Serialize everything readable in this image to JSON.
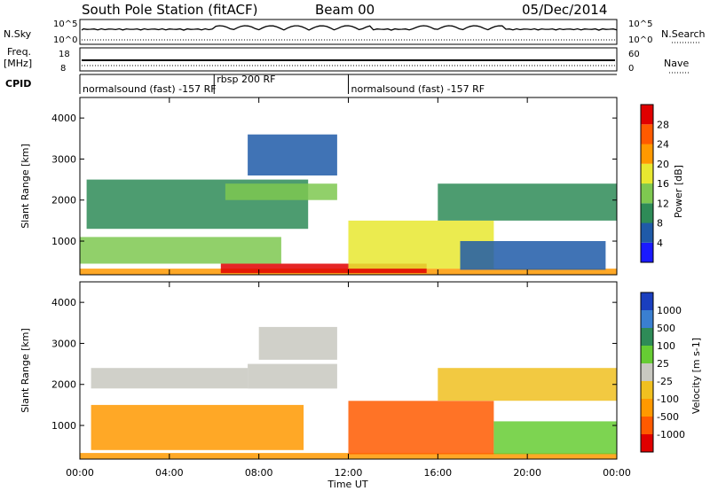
{
  "header": {
    "station": "South Pole Station (fitACF)",
    "beam": "Beam 00",
    "date": "05/Dec/2014"
  },
  "param_panels": {
    "nsky_label": "N.Sky",
    "nsearch_label": "N.Search",
    "sky_ticks_left": [
      "10^5",
      "10^0"
    ],
    "sky_ticks_right": [
      "10^5",
      "10^0"
    ],
    "freq_label_1": "Freq.",
    "freq_label_2": "[MHz]",
    "freq_ticks": [
      "18",
      "8"
    ],
    "nave_label": "Nave",
    "nave_ticks": [
      "60",
      "0"
    ],
    "cpid_label": "CPID",
    "cpid_segments": [
      {
        "label": "normalsound (fast) -157 RF",
        "start": 0.0,
        "end": 6.0
      },
      {
        "label": "rbsp 200 RF",
        "start": 6.0,
        "end": 12.0
      },
      {
        "label": "normalsound (fast) -157 RF",
        "start": 12.0,
        "end": 24.0
      }
    ]
  },
  "axes": {
    "ylabel": "Slant Range [km]",
    "xlabel": "Time UT",
    "y_ticks": [
      "1000",
      "2000",
      "3000",
      "4000"
    ],
    "x_ticks": [
      "00:00",
      "04:00",
      "08:00",
      "12:00",
      "16:00",
      "20:00",
      "00:00"
    ]
  },
  "power_colorbar": {
    "label": "Power [dB]",
    "ticks": [
      "4",
      "8",
      "12",
      "16",
      "20",
      "24",
      "28"
    ],
    "colors": [
      "#1a1aff",
      "#1f5aa8",
      "#2e8b57",
      "#7ec850",
      "#e8e830",
      "#ff9900",
      "#ff5a00",
      "#e00000"
    ]
  },
  "velocity_colorbar": {
    "label": "Velocity [m s-1]",
    "ticks": [
      "1000",
      "500",
      "100",
      "25",
      "-25",
      "-100",
      "-500",
      "-1000"
    ],
    "colors": [
      "#1a3fbf",
      "#3a7fd0",
      "#2e8b57",
      "#66cc33",
      "#c8c8c0",
      "#f0c020",
      "#ff9900",
      "#ff5a00",
      "#e00000"
    ]
  },
  "chart_data": [
    {
      "type": "heatmap",
      "panel": "power",
      "x_range_hours": [
        0,
        24
      ],
      "y_range_km": [
        180,
        4500
      ],
      "value_range_db": [
        0,
        30
      ],
      "bands": [
        {
          "t0": 0.0,
          "t1": 24.0,
          "r0": 180,
          "r1": 330,
          "value": 20
        },
        {
          "t0": 6.3,
          "t1": 15.5,
          "r0": 220,
          "r1": 450,
          "value": 27
        },
        {
          "t0": 0.0,
          "t1": 9.0,
          "r0": 450,
          "r1": 1100,
          "value": 14
        },
        {
          "t0": 12.0,
          "t1": 18.5,
          "r0": 330,
          "r1": 1500,
          "value": 18
        },
        {
          "t0": 0.3,
          "t1": 10.2,
          "r0": 1300,
          "r1": 2500,
          "value": 9
        },
        {
          "t0": 6.5,
          "t1": 11.5,
          "r0": 2000,
          "r1": 2400,
          "value": 12
        },
        {
          "t0": 16.0,
          "t1": 24.0,
          "r0": 1500,
          "r1": 2400,
          "value": 8
        },
        {
          "t0": 17.0,
          "t1": 23.5,
          "r0": 300,
          "r1": 1000,
          "value": 6
        },
        {
          "t0": 7.5,
          "t1": 11.5,
          "r0": 2600,
          "r1": 3600,
          "value": 5
        }
      ]
    },
    {
      "type": "heatmap",
      "panel": "velocity",
      "x_range_hours": [
        0,
        24
      ],
      "y_range_km": [
        180,
        4500
      ],
      "value_range_ms": [
        -1000,
        1000
      ],
      "bands": [
        {
          "t0": 0.0,
          "t1": 24.0,
          "r0": 180,
          "r1": 330,
          "value": -300
        },
        {
          "t0": 0.5,
          "t1": 10.0,
          "r0": 400,
          "r1": 1500,
          "value": -400
        },
        {
          "t0": 0.5,
          "t1": 7.5,
          "r0": 1900,
          "r1": 2400,
          "value": 0
        },
        {
          "t0": 7.5,
          "t1": 11.5,
          "r0": 1900,
          "r1": 2500,
          "value": 0
        },
        {
          "t0": 12.0,
          "t1": 18.5,
          "r0": 300,
          "r1": 1600,
          "value": -700
        },
        {
          "t0": 16.0,
          "t1": 24.0,
          "r0": 1600,
          "r1": 2400,
          "value": -50
        },
        {
          "t0": 18.5,
          "t1": 24.0,
          "r0": 300,
          "r1": 1100,
          "value": 60
        },
        {
          "t0": 8.0,
          "t1": 11.5,
          "r0": 2600,
          "r1": 3400,
          "value": 0
        }
      ]
    }
  ]
}
